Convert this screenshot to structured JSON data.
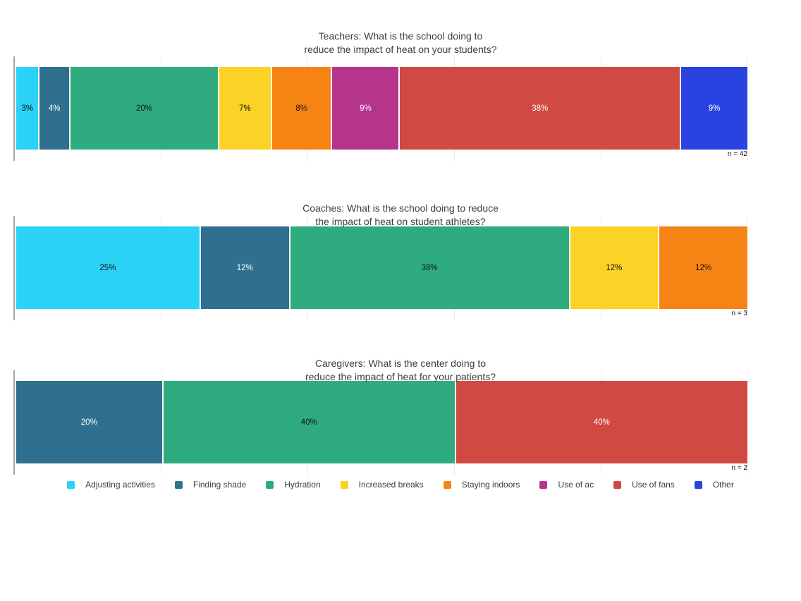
{
  "page": {
    "background": "#ffffff"
  },
  "palette": {
    "adjusting_activities": "#2bd2f7",
    "finding_shade": "#2f7090",
    "hydration": "#2eac7f",
    "increased_breaks": "#fbd226",
    "staying_indoors": "#f68414",
    "use_of_ac": "#b5348c",
    "use_of_fans": "#d04a42",
    "other": "#2942e0"
  },
  "charts": [
    {
      "id": "teachers",
      "title_line1": "Teachers: What is the school doing to",
      "title_line2": "reduce the impact of heat on your students?",
      "n_label": "n = 42",
      "segments": [
        {
          "category": "Adjusting activities",
          "label": "3%",
          "value": 3,
          "color": "#2bd2f7",
          "text_color": "#111111"
        },
        {
          "category": "Finding shade",
          "label": "4%",
          "value": 4,
          "color": "#2f7090",
          "text_color": "#ffffff"
        },
        {
          "category": "Hydration",
          "label": "20%",
          "value": 20,
          "color": "#2eac7f",
          "text_color": "#111111"
        },
        {
          "category": "Increased breaks",
          "label": "7%",
          "value": 7,
          "color": "#fbd226",
          "text_color": "#111111"
        },
        {
          "category": "Staying indoors",
          "label": "8%",
          "value": 8,
          "color": "#f68414",
          "text_color": "#111111"
        },
        {
          "category": "Use of ac",
          "label": "9%",
          "value": 9,
          "color": "#b5348c",
          "text_color": "#ffffff"
        },
        {
          "category": "Use of fans",
          "label": "38%",
          "value": 38,
          "color": "#d04a42",
          "text_color": "#ffffff"
        },
        {
          "category": "Other",
          "label": "9%",
          "value": 9,
          "color": "#2942e0",
          "text_color": "#ffffff"
        }
      ]
    },
    {
      "id": "coaches",
      "title_line1": "Coaches: What is the school doing to reduce",
      "title_line2": "the impact of heat on student athletes?",
      "n_label": "n = 3",
      "segments": [
        {
          "category": "Adjusting activities",
          "label": "25%",
          "value": 25,
          "color": "#2bd2f7",
          "text_color": "#111111"
        },
        {
          "category": "Finding shade",
          "label": "12%",
          "value": 12,
          "color": "#2f7090",
          "text_color": "#ffffff"
        },
        {
          "category": "Hydration",
          "label": "38%",
          "value": 38,
          "color": "#2eac7f",
          "text_color": "#111111"
        },
        {
          "category": "Increased breaks",
          "label": "12%",
          "value": 12,
          "color": "#fbd226",
          "text_color": "#111111"
        },
        {
          "category": "Staying indoors",
          "label": "12%",
          "value": 12,
          "color": "#f68414",
          "text_color": "#111111"
        }
      ]
    },
    {
      "id": "caregivers",
      "title_line1": "Caregivers: What is the center doing to",
      "title_line2": "reduce the impact of heat for your patients?",
      "n_label": "n = 2",
      "segments": [
        {
          "category": "Finding shade",
          "label": "20%",
          "value": 20,
          "color": "#2f7090",
          "text_color": "#ffffff"
        },
        {
          "category": "Hydration",
          "label": "40%",
          "value": 40,
          "color": "#2eac7f",
          "text_color": "#111111"
        },
        {
          "category": "Use of fans",
          "label": "40%",
          "value": 40,
          "color": "#d04a42",
          "text_color": "#ffffff"
        }
      ]
    }
  ],
  "legend": {
    "items": [
      {
        "label": "Adjusting activities",
        "color": "#2bd2f7"
      },
      {
        "label": "Finding shade",
        "color": "#2f7090"
      },
      {
        "label": "Hydration",
        "color": "#2eac7f"
      },
      {
        "label": "Increased breaks",
        "color": "#fbd226"
      },
      {
        "label": "Staying indoors",
        "color": "#f68414"
      },
      {
        "label": "Use of ac",
        "color": "#b5348c"
      },
      {
        "label": "Use of fans",
        "color": "#d04a42"
      },
      {
        "label": "Other",
        "color": "#2942e0"
      }
    ]
  },
  "chart_data": [
    {
      "type": "bar",
      "stacked": true,
      "orientation": "horizontal",
      "title": "Teachers: What is the school doing to reduce the impact of heat on your students?",
      "categories": [
        "Adjusting activities",
        "Finding shade",
        "Hydration",
        "Increased breaks",
        "Staying indoors",
        "Use of ac",
        "Use of fans",
        "Other"
      ],
      "values": [
        3,
        4,
        20,
        7,
        8,
        9,
        38,
        9
      ],
      "unit": "%",
      "annotation": "n = 42",
      "xlim": [
        0,
        100
      ],
      "grid": true,
      "legend_position": "bottom"
    },
    {
      "type": "bar",
      "stacked": true,
      "orientation": "horizontal",
      "title": "Coaches: What is the school doing to reduce the impact of heat on student athletes?",
      "categories": [
        "Adjusting activities",
        "Finding shade",
        "Hydration",
        "Increased breaks",
        "Staying indoors"
      ],
      "values": [
        25,
        12,
        38,
        12,
        12
      ],
      "unit": "%",
      "annotation": "n = 3",
      "xlim": [
        0,
        100
      ],
      "grid": true,
      "legend_position": "bottom"
    },
    {
      "type": "bar",
      "stacked": true,
      "orientation": "horizontal",
      "title": "Caregivers: What is the center doing to reduce the impact of heat for your patients?",
      "categories": [
        "Finding shade",
        "Hydration",
        "Use of fans"
      ],
      "values": [
        20,
        40,
        40
      ],
      "unit": "%",
      "annotation": "n = 2",
      "xlim": [
        0,
        100
      ],
      "grid": true,
      "legend_position": "bottom"
    }
  ]
}
